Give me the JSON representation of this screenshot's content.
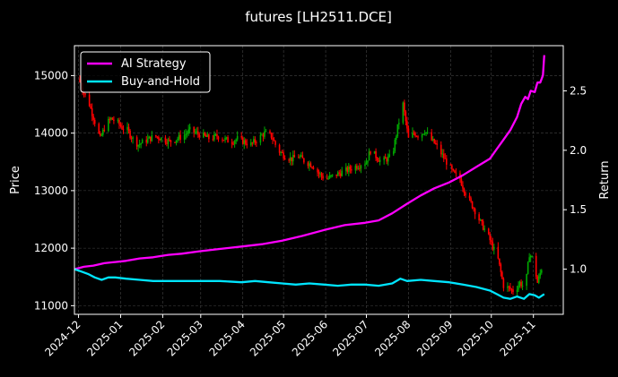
{
  "chart_data": {
    "type": "line",
    "title": "futures [LH2511.DCE]",
    "ylabel_left": "Price",
    "ylabel_right": "Return",
    "x_ticks": [
      "2024-12",
      "2025-01",
      "2025-02",
      "2025-03",
      "2025-04",
      "2025-05",
      "2025-06",
      "2025-07",
      "2025-08",
      "2025-09",
      "2025-10",
      "2025-11"
    ],
    "x_range": [
      "2024-11-28",
      "2025-11-23"
    ],
    "y_left": {
      "range": [
        10850,
        15520
      ],
      "ticks": [
        11000,
        12000,
        13000,
        14000,
        15000
      ]
    },
    "y_right": {
      "range": [
        0.62,
        2.88
      ],
      "ticks": [
        1.0,
        1.5,
        2.0,
        2.5
      ]
    },
    "grid": true,
    "legend": {
      "placement": "top-left",
      "entries": [
        {
          "label": "AI Strategy",
          "color": "#ff00ff"
        },
        {
          "label": "Buy-and-Hold",
          "color": "#00e5ff"
        }
      ]
    },
    "candles": {
      "up_color": "#00aa00",
      "down_color": "#ff0000",
      "note": "daily OHLC candlesticks, price on left axis",
      "close_path": [
        [
          "2024-12-01",
          14950
        ],
        [
          "2024-12-05",
          14700
        ],
        [
          "2024-12-09",
          14500
        ],
        [
          "2024-12-13",
          14200
        ],
        [
          "2024-12-17",
          13900
        ],
        [
          "2024-12-21",
          14150
        ],
        [
          "2024-12-25",
          14250
        ],
        [
          "2024-12-29",
          14200
        ],
        [
          "2025-01-02",
          14100
        ],
        [
          "2025-01-06",
          14050
        ],
        [
          "2025-01-10",
          13900
        ],
        [
          "2025-01-14",
          13800
        ],
        [
          "2025-01-18",
          13850
        ],
        [
          "2025-01-22",
          13900
        ],
        [
          "2025-01-26",
          13950
        ],
        [
          "2025-02-01",
          13900
        ],
        [
          "2025-02-06",
          13850
        ],
        [
          "2025-02-11",
          13900
        ],
        [
          "2025-02-16",
          13950
        ],
        [
          "2025-02-21",
          14050
        ],
        [
          "2025-02-26",
          14000
        ],
        [
          "2025-03-03",
          13950
        ],
        [
          "2025-03-08",
          13900
        ],
        [
          "2025-03-13",
          13950
        ],
        [
          "2025-03-18",
          13900
        ],
        [
          "2025-03-23",
          13850
        ],
        [
          "2025-03-28",
          13900
        ],
        [
          "2025-04-02",
          13850
        ],
        [
          "2025-04-07",
          13800
        ],
        [
          "2025-04-12",
          13900
        ],
        [
          "2025-04-17",
          14000
        ],
        [
          "2025-04-22",
          13950
        ],
        [
          "2025-04-27",
          13700
        ],
        [
          "2025-05-02",
          13600
        ],
        [
          "2025-05-07",
          13550
        ],
        [
          "2025-05-12",
          13600
        ],
        [
          "2025-05-17",
          13500
        ],
        [
          "2025-05-22",
          13450
        ],
        [
          "2025-05-27",
          13300
        ],
        [
          "2025-06-01",
          13200
        ],
        [
          "2025-06-06",
          13250
        ],
        [
          "2025-06-11",
          13300
        ],
        [
          "2025-06-16",
          13350
        ],
        [
          "2025-06-21",
          13400
        ],
        [
          "2025-06-26",
          13450
        ],
        [
          "2025-07-01",
          13500
        ],
        [
          "2025-07-04",
          13700
        ],
        [
          "2025-07-08",
          13600
        ],
        [
          "2025-07-12",
          13500
        ],
        [
          "2025-07-16",
          13550
        ],
        [
          "2025-07-20",
          13600
        ],
        [
          "2025-07-24",
          14100
        ],
        [
          "2025-07-28",
          14500
        ],
        [
          "2025-08-01",
          13900
        ],
        [
          "2025-08-05",
          14000
        ],
        [
          "2025-08-09",
          13950
        ],
        [
          "2025-08-13",
          14050
        ],
        [
          "2025-08-17",
          13900
        ],
        [
          "2025-08-21",
          13800
        ],
        [
          "2025-08-25",
          13650
        ],
        [
          "2025-08-29",
          13500
        ],
        [
          "2025-09-03",
          13300
        ],
        [
          "2025-09-08",
          13200
        ],
        [
          "2025-09-13",
          12900
        ],
        [
          "2025-09-18",
          12700
        ],
        [
          "2025-09-23",
          12450
        ],
        [
          "2025-09-28",
          12250
        ],
        [
          "2025-10-06",
          11800
        ],
        [
          "2025-10-10",
          11350
        ],
        [
          "2025-10-14",
          11300
        ],
        [
          "2025-10-18",
          11250
        ],
        [
          "2025-10-22",
          11400
        ],
        [
          "2025-10-26",
          11300
        ],
        [
          "2025-10-29",
          11900
        ],
        [
          "2025-11-01",
          11800
        ],
        [
          "2025-11-04",
          11400
        ],
        [
          "2025-11-07",
          11650
        ]
      ]
    },
    "series": [
      {
        "name": "AI Strategy",
        "axis": "right",
        "color": "#ff00ff",
        "points": [
          [
            "2024-11-28",
            1.0
          ],
          [
            "2024-12-05",
            1.02
          ],
          [
            "2024-12-12",
            1.03
          ],
          [
            "2024-12-20",
            1.05
          ],
          [
            "2024-12-28",
            1.06
          ],
          [
            "2025-01-05",
            1.07
          ],
          [
            "2025-01-15",
            1.09
          ],
          [
            "2025-01-25",
            1.1
          ],
          [
            "2025-02-05",
            1.12
          ],
          [
            "2025-02-15",
            1.13
          ],
          [
            "2025-02-28",
            1.15
          ],
          [
            "2025-03-15",
            1.17
          ],
          [
            "2025-03-31",
            1.19
          ],
          [
            "2025-04-15",
            1.21
          ],
          [
            "2025-04-30",
            1.24
          ],
          [
            "2025-05-15",
            1.28
          ],
          [
            "2025-05-31",
            1.33
          ],
          [
            "2025-06-15",
            1.37
          ],
          [
            "2025-06-30",
            1.39
          ],
          [
            "2025-07-10",
            1.41
          ],
          [
            "2025-07-20",
            1.47
          ],
          [
            "2025-07-31",
            1.55
          ],
          [
            "2025-08-10",
            1.62
          ],
          [
            "2025-08-20",
            1.68
          ],
          [
            "2025-08-31",
            1.73
          ],
          [
            "2025-09-10",
            1.79
          ],
          [
            "2025-09-20",
            1.86
          ],
          [
            "2025-09-30",
            1.93
          ],
          [
            "2025-10-05",
            2.01
          ],
          [
            "2025-10-10",
            2.09
          ],
          [
            "2025-10-15",
            2.17
          ],
          [
            "2025-10-20",
            2.28
          ],
          [
            "2025-10-23",
            2.39
          ],
          [
            "2025-10-26",
            2.45
          ],
          [
            "2025-10-28",
            2.43
          ],
          [
            "2025-10-30",
            2.5
          ],
          [
            "2025-11-02",
            2.49
          ],
          [
            "2025-11-04",
            2.57
          ],
          [
            "2025-11-06",
            2.57
          ],
          [
            "2025-11-08",
            2.63
          ],
          [
            "2025-11-09",
            2.8
          ]
        ]
      },
      {
        "name": "Buy-and-Hold",
        "axis": "right",
        "color": "#00e5ff",
        "points": [
          [
            "2024-11-28",
            1.0
          ],
          [
            "2024-12-03",
            0.98
          ],
          [
            "2024-12-08",
            0.96
          ],
          [
            "2024-12-13",
            0.93
          ],
          [
            "2024-12-18",
            0.91
          ],
          [
            "2024-12-23",
            0.93
          ],
          [
            "2024-12-28",
            0.93
          ],
          [
            "2025-01-05",
            0.92
          ],
          [
            "2025-01-15",
            0.91
          ],
          [
            "2025-01-25",
            0.9
          ],
          [
            "2025-02-05",
            0.9
          ],
          [
            "2025-02-15",
            0.9
          ],
          [
            "2025-02-28",
            0.9
          ],
          [
            "2025-03-15",
            0.9
          ],
          [
            "2025-03-31",
            0.89
          ],
          [
            "2025-04-10",
            0.9
          ],
          [
            "2025-04-20",
            0.89
          ],
          [
            "2025-04-30",
            0.88
          ],
          [
            "2025-05-10",
            0.87
          ],
          [
            "2025-05-20",
            0.88
          ],
          [
            "2025-05-31",
            0.87
          ],
          [
            "2025-06-10",
            0.86
          ],
          [
            "2025-06-20",
            0.87
          ],
          [
            "2025-06-30",
            0.87
          ],
          [
            "2025-07-10",
            0.86
          ],
          [
            "2025-07-20",
            0.88
          ],
          [
            "2025-07-26",
            0.92
          ],
          [
            "2025-07-31",
            0.9
          ],
          [
            "2025-08-10",
            0.91
          ],
          [
            "2025-08-20",
            0.9
          ],
          [
            "2025-08-31",
            0.89
          ],
          [
            "2025-09-10",
            0.87
          ],
          [
            "2025-09-20",
            0.85
          ],
          [
            "2025-09-30",
            0.82
          ],
          [
            "2025-10-05",
            0.79
          ],
          [
            "2025-10-10",
            0.76
          ],
          [
            "2025-10-15",
            0.75
          ],
          [
            "2025-10-20",
            0.77
          ],
          [
            "2025-10-25",
            0.75
          ],
          [
            "2025-10-29",
            0.79
          ],
          [
            "2025-11-02",
            0.78
          ],
          [
            "2025-11-05",
            0.76
          ],
          [
            "2025-11-09",
            0.79
          ]
        ]
      }
    ]
  }
}
